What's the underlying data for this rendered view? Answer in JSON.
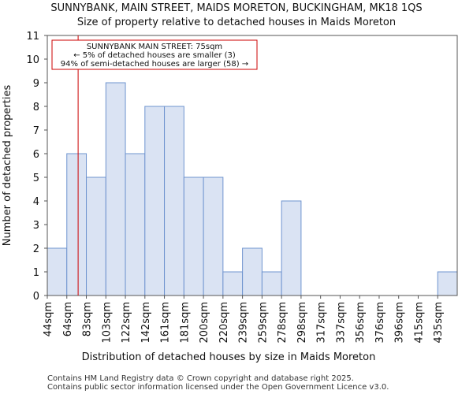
{
  "chart_data": {
    "type": "bar",
    "title": "SUNNYBANK, MAIN STREET, MAIDS MORETON, BUCKINGHAM, MK18 1QS",
    "subtitle": "Size of property relative to detached houses in Maids Moreton",
    "xlabel": "Distribution of detached houses by size in Maids Moreton",
    "ylabel": "Number of detached properties",
    "categories": [
      "44sqm",
      "64sqm",
      "83sqm",
      "103sqm",
      "122sqm",
      "142sqm",
      "161sqm",
      "181sqm",
      "200sqm",
      "220sqm",
      "239sqm",
      "259sqm",
      "278sqm",
      "298sqm",
      "317sqm",
      "337sqm",
      "356sqm",
      "376sqm",
      "396sqm",
      "415sqm",
      "435sqm"
    ],
    "values": [
      2,
      6,
      5,
      9,
      6,
      8,
      8,
      5,
      5,
      1,
      2,
      1,
      4,
      0,
      0,
      0,
      0,
      0,
      0,
      0,
      1
    ],
    "ylim": [
      0,
      11
    ],
    "yticks": [
      0,
      1,
      2,
      3,
      4,
      5,
      6,
      7,
      8,
      9,
      10,
      11
    ],
    "grid": false,
    "bar_fill": "#dae3f3",
    "bar_edge": "#6f94cf",
    "marker": {
      "value_sqm": 75,
      "color": "#cc0000",
      "annotation_lines": [
        "SUNNYBANK MAIN STREET: 75sqm",
        "← 5% of detached houses are smaller (3)",
        "94% of semi-detached houses are larger (58) →"
      ]
    }
  },
  "footer": {
    "line1": "Contains HM Land Registry data © Crown copyright and database right 2025.",
    "line2": "Contains public sector information licensed under the Open Government Licence v3.0."
  }
}
